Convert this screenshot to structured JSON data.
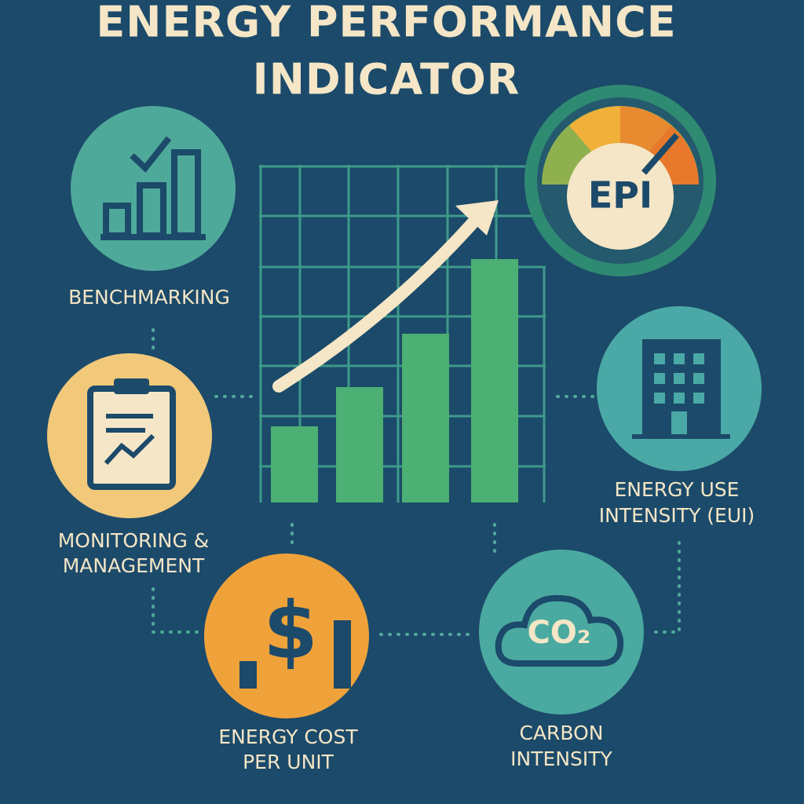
{
  "header": {
    "title_lines": [
      "ENERGY PERFORMANCE",
      "INDICATOR"
    ]
  },
  "gauge": {
    "label": "EPI"
  },
  "nodes": [
    {
      "label_lines": [
        "BENCHMARKING"
      ]
    },
    {
      "label_lines": [
        "MONITORING &",
        "MANAGEMENT"
      ]
    },
    {
      "label_lines": [
        "ENERGY COST",
        "PER UNIT"
      ],
      "icon_text": "$"
    },
    {
      "label_lines": [
        "CARBON",
        "INTENSITY"
      ],
      "icon_text": "CO₂"
    },
    {
      "label_lines": [
        "ENERGY USE",
        "INTENSITY (EUI)"
      ]
    }
  ]
}
